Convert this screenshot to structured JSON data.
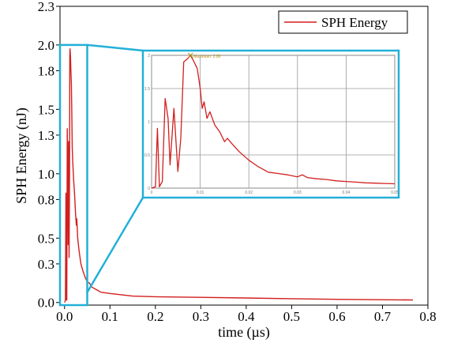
{
  "chart_data": [
    {
      "type": "line",
      "title": "",
      "xlabel": "time (µs)",
      "ylabel": "SPH Energy (nJ)",
      "xlim": [
        -0.01,
        0.8
      ],
      "ylim": [
        -0.02,
        2.3
      ],
      "x_ticks": [
        "0.0",
        "0.1",
        "0.2",
        "0.3",
        "0.4",
        "0.5",
        "0.6",
        "0.7",
        "0.8"
      ],
      "y_ticks": [
        "0.0",
        "0.3",
        "0.5",
        "0.8",
        "1.0",
        "1.3",
        "1.5",
        "1.8",
        "2.0",
        "2.3"
      ],
      "legend": {
        "position": "top-right",
        "entries": [
          "SPH Energy"
        ]
      },
      "grid": false,
      "zoom_box": {
        "x_range": [
          -0.01,
          0.05
        ],
        "y_range": [
          -0.02,
          2.0
        ]
      },
      "series": [
        {
          "name": "SPH Energy",
          "color": "#d21f1f",
          "points": [
            [
              0.0,
              0.0
            ],
            [
              0.002,
              0.02
            ],
            [
              0.003,
              0.85
            ],
            [
              0.004,
              0.02
            ],
            [
              0.005,
              0.02
            ],
            [
              0.006,
              1.35
            ],
            [
              0.007,
              1.0
            ],
            [
              0.008,
              0.45
            ],
            [
              0.009,
              1.25
            ],
            [
              0.01,
              0.35
            ],
            [
              0.011,
              1.0
            ],
            [
              0.0115,
              1.9
            ],
            [
              0.012,
              1.97
            ],
            [
              0.013,
              1.92
            ],
            [
              0.014,
              1.8
            ],
            [
              0.015,
              1.7
            ],
            [
              0.016,
              1.45
            ],
            [
              0.017,
              1.2
            ],
            [
              0.018,
              1.1
            ],
            [
              0.02,
              0.95
            ],
            [
              0.022,
              0.85
            ],
            [
              0.024,
              0.7
            ],
            [
              0.026,
              0.6
            ],
            [
              0.027,
              0.65
            ],
            [
              0.029,
              0.5
            ],
            [
              0.032,
              0.4
            ],
            [
              0.036,
              0.3
            ],
            [
              0.04,
              0.25
            ],
            [
              0.045,
              0.2
            ],
            [
              0.05,
              0.16
            ],
            [
              0.055,
              0.15
            ],
            [
              0.06,
              0.12
            ],
            [
              0.07,
              0.1
            ],
            [
              0.08,
              0.08
            ],
            [
              0.1,
              0.07
            ],
            [
              0.15,
              0.05
            ],
            [
              0.2,
              0.045
            ],
            [
              0.3,
              0.04
            ],
            [
              0.4,
              0.035
            ],
            [
              0.5,
              0.03
            ],
            [
              0.6,
              0.025
            ],
            [
              0.7,
              0.022
            ],
            [
              0.767,
              0.02
            ]
          ]
        }
      ]
    },
    {
      "type": "line",
      "title": "",
      "xlabel": "",
      "ylabel": "",
      "xlim": [
        0.0,
        0.05
      ],
      "ylim": [
        0.0,
        2.0
      ],
      "grid": true,
      "x_ticks": [
        "0",
        "0.01",
        "0.02",
        "0.03",
        "0.04",
        "0.05"
      ],
      "y_ticks": [
        "0",
        "0.5",
        "1",
        "1.5",
        "2"
      ],
      "annotations": [
        "Maximum: 2.00"
      ],
      "series": [
        {
          "name": "SPH Energy",
          "color": "#d21f1f",
          "points": [
            [
              0.0,
              0.0
            ],
            [
              0.0008,
              0.02
            ],
            [
              0.0012,
              0.9
            ],
            [
              0.0016,
              0.02
            ],
            [
              0.0022,
              0.1
            ],
            [
              0.0028,
              1.35
            ],
            [
              0.0034,
              1.05
            ],
            [
              0.0038,
              0.35
            ],
            [
              0.0046,
              1.2
            ],
            [
              0.0054,
              0.25
            ],
            [
              0.006,
              0.75
            ],
            [
              0.0066,
              1.9
            ],
            [
              0.0074,
              1.95
            ],
            [
              0.008,
              2.0
            ],
            [
              0.0086,
              1.92
            ],
            [
              0.0094,
              1.8
            ],
            [
              0.01,
              1.5
            ],
            [
              0.0104,
              1.2
            ],
            [
              0.0108,
              1.3
            ],
            [
              0.0114,
              1.05
            ],
            [
              0.012,
              1.15
            ],
            [
              0.013,
              0.95
            ],
            [
              0.014,
              0.85
            ],
            [
              0.015,
              0.7
            ],
            [
              0.0156,
              0.75
            ],
            [
              0.0164,
              0.68
            ],
            [
              0.018,
              0.55
            ],
            [
              0.02,
              0.42
            ],
            [
              0.022,
              0.32
            ],
            [
              0.024,
              0.24
            ],
            [
              0.026,
              0.22
            ],
            [
              0.028,
              0.2
            ],
            [
              0.03,
              0.17
            ],
            [
              0.031,
              0.2
            ],
            [
              0.032,
              0.16
            ],
            [
              0.034,
              0.14
            ],
            [
              0.036,
              0.13
            ],
            [
              0.038,
              0.11
            ],
            [
              0.04,
              0.1
            ],
            [
              0.042,
              0.09
            ],
            [
              0.044,
              0.08
            ],
            [
              0.046,
              0.075
            ],
            [
              0.048,
              0.07
            ],
            [
              0.05,
              0.065
            ]
          ]
        }
      ]
    }
  ]
}
